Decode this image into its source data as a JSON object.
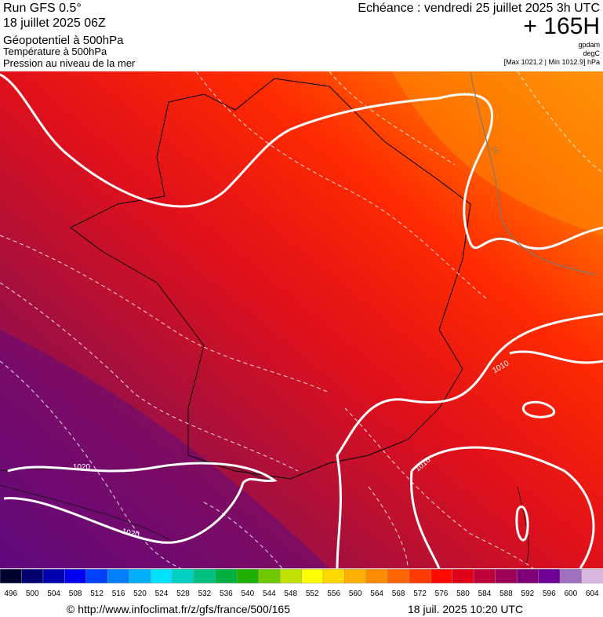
{
  "header": {
    "run": "Run GFS 0.5°",
    "date": "18 juillet 2025 06Z",
    "title": "Géopotentiel à 500hPa",
    "subtitle1": "Température à 500hPa",
    "subtitle2": "Pression au niveau de la mer",
    "echeance": "Echéance : vendredi 25 juillet 2025 3h UTC",
    "lead": "+ 165H",
    "unit1": "gpdam",
    "unit2": "degC",
    "range": "[Max 1021.2 | Min 1012.9] hPa"
  },
  "map": {
    "contour_labels": [
      "1020",
      "1020",
      "1010",
      "1016",
      "16"
    ]
  },
  "legend": {
    "labels": [
      "496",
      "500",
      "504",
      "508",
      "512",
      "516",
      "520",
      "524",
      "528",
      "532",
      "536",
      "540",
      "544",
      "548",
      "552",
      "556",
      "560",
      "564",
      "568",
      "572",
      "576",
      "580",
      "584",
      "588",
      "592",
      "596",
      "600",
      "604"
    ],
    "colors": [
      "#000030",
      "#000070",
      "#0000b0",
      "#0000f0",
      "#0040ff",
      "#0080ff",
      "#00b0ff",
      "#00e0ff",
      "#00d0c0",
      "#00c080",
      "#00b040",
      "#20b000",
      "#70c800",
      "#c0e000",
      "#ffff00",
      "#ffd800",
      "#ffb000",
      "#ff8c00",
      "#ff6400",
      "#ff3c00",
      "#ff0a00",
      "#e00018",
      "#c00038",
      "#a00058",
      "#800078",
      "#700098",
      "#a070c0",
      "#d8b8e0"
    ]
  },
  "footer": {
    "url": "© http://www.infoclimat.fr/z/gfs/france/500/165",
    "timestamp": "18 juil. 2025 10:20 UTC"
  }
}
